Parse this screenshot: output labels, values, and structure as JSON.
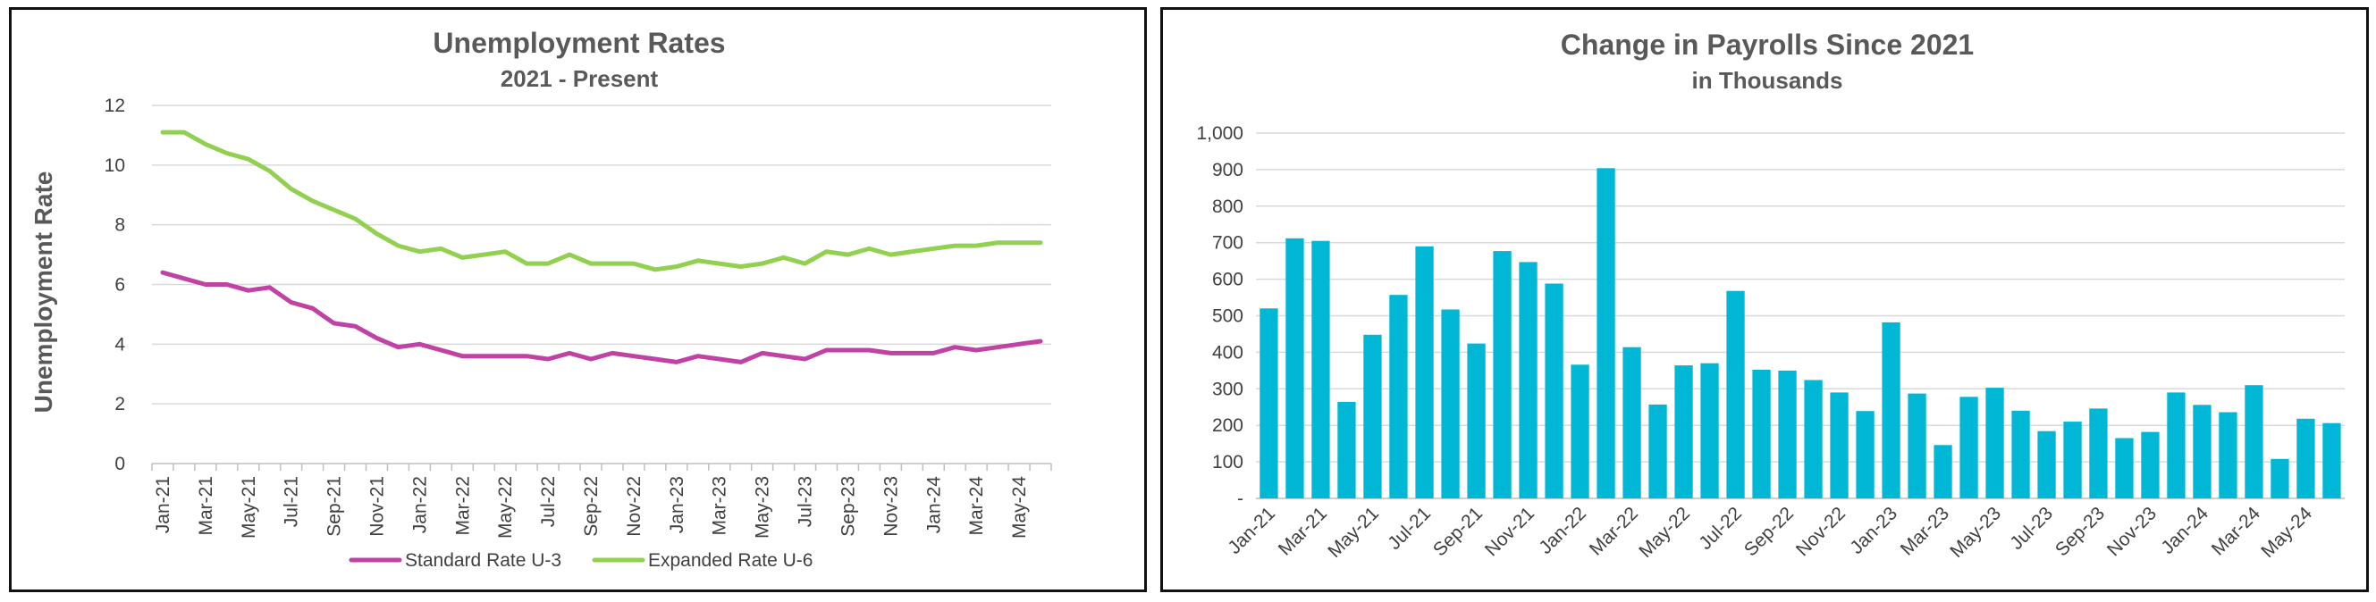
{
  "chart_data": [
    {
      "type": "line",
      "title": "Unemployment Rates",
      "subtitle": "2021 - Present",
      "xlabel": "",
      "ylabel": "Unemployment Rate",
      "ylim": [
        0,
        12
      ],
      "yticks": [
        "0",
        "2",
        "4",
        "6",
        "8",
        "10",
        "12"
      ],
      "grid": true,
      "legend": "bottom",
      "x": [
        "Jan-21",
        "Feb-21",
        "Mar-21",
        "Apr-21",
        "May-21",
        "Jun-21",
        "Jul-21",
        "Aug-21",
        "Sep-21",
        "Oct-21",
        "Nov-21",
        "Dec-21",
        "Jan-22",
        "Feb-22",
        "Mar-22",
        "Apr-22",
        "May-22",
        "Jun-22",
        "Jul-22",
        "Aug-22",
        "Sep-22",
        "Oct-22",
        "Nov-22",
        "Dec-22",
        "Jan-23",
        "Feb-23",
        "Mar-23",
        "Apr-23",
        "May-23",
        "Jun-23",
        "Jul-23",
        "Aug-23",
        "Sep-23",
        "Oct-23",
        "Nov-23",
        "Dec-23",
        "Jan-24",
        "Feb-24",
        "Mar-24",
        "Apr-24",
        "May-24",
        "Jun-24"
      ],
      "xtick_labels": [
        "Jan-21",
        "Mar-21",
        "May-21",
        "Jul-21",
        "Sep-21",
        "Nov-21",
        "Jan-22",
        "Mar-22",
        "May-22",
        "Jul-22",
        "Sep-22",
        "Nov-22",
        "Jan-23",
        "Mar-23",
        "May-23",
        "Jul-23",
        "Sep-23",
        "Nov-23",
        "Jan-24",
        "Mar-24",
        "May-24"
      ],
      "series": [
        {
          "name": "Standard Rate U-3",
          "color": "#c042a5",
          "values": [
            6.4,
            6.2,
            6.0,
            6.0,
            5.8,
            5.9,
            5.4,
            5.2,
            4.7,
            4.6,
            4.2,
            3.9,
            4.0,
            3.8,
            3.6,
            3.6,
            3.6,
            3.6,
            3.5,
            3.7,
            3.5,
            3.7,
            3.6,
            3.5,
            3.4,
            3.6,
            3.5,
            3.4,
            3.7,
            3.6,
            3.5,
            3.8,
            3.8,
            3.8,
            3.7,
            3.7,
            3.7,
            3.9,
            3.8,
            3.9,
            4.0,
            4.1
          ]
        },
        {
          "name": "Expanded Rate U-6",
          "color": "#92d050",
          "values": [
            11.1,
            11.1,
            10.7,
            10.4,
            10.2,
            9.8,
            9.2,
            8.8,
            8.5,
            8.2,
            7.7,
            7.3,
            7.1,
            7.2,
            6.9,
            7.0,
            7.1,
            6.7,
            6.7,
            7.0,
            6.7,
            6.7,
            6.7,
            6.5,
            6.6,
            6.8,
            6.7,
            6.6,
            6.7,
            6.9,
            6.7,
            7.1,
            7.0,
            7.2,
            7.0,
            7.1,
            7.2,
            7.3,
            7.3,
            7.4,
            7.4,
            7.4
          ]
        }
      ]
    },
    {
      "type": "bar",
      "title": "Change in Payrolls Since 2021",
      "subtitle": "in Thousands",
      "xlabel": "",
      "ylabel": "",
      "ylim": [
        0,
        1000
      ],
      "yticks": [
        "-",
        "100",
        "200",
        "300",
        "400",
        "500",
        "600",
        "700",
        "800",
        "900",
        "1,000"
      ],
      "grid": true,
      "color": "#00b8d6",
      "categories": [
        "Jan-21",
        "Feb-21",
        "Mar-21",
        "Apr-21",
        "May-21",
        "Jun-21",
        "Jul-21",
        "Aug-21",
        "Sep-21",
        "Oct-21",
        "Nov-21",
        "Dec-21",
        "Jan-22",
        "Feb-22",
        "Mar-22",
        "Apr-22",
        "May-22",
        "Jun-22",
        "Jul-22",
        "Aug-22",
        "Sep-22",
        "Oct-22",
        "Nov-22",
        "Dec-22",
        "Jan-23",
        "Feb-23",
        "Mar-23",
        "Apr-23",
        "May-23",
        "Jun-23",
        "Jul-23",
        "Aug-23",
        "Sep-23",
        "Oct-23",
        "Nov-23",
        "Dec-23",
        "Jan-24",
        "Feb-24",
        "Mar-24",
        "Apr-24",
        "May-24",
        "Jun-24"
      ],
      "xtick_labels": [
        "Jan-21",
        "Mar-21",
        "May-21",
        "Jul-21",
        "Sep-21",
        "Nov-21",
        "Jan-22",
        "Mar-22",
        "May-22",
        "Jul-22",
        "Sep-22",
        "Nov-22",
        "Jan-23",
        "Mar-23",
        "May-23",
        "Jul-23",
        "Sep-23",
        "Nov-23",
        "Jan-24",
        "Mar-24",
        "May-24"
      ],
      "values": [
        520,
        712,
        705,
        264,
        448,
        557,
        690,
        517,
        424,
        677,
        647,
        588,
        366,
        904,
        414,
        257,
        364,
        370,
        568,
        352,
        350,
        324,
        290,
        239,
        482,
        287,
        146,
        278,
        303,
        240,
        184,
        210,
        246,
        165,
        182,
        290,
        256,
        236,
        310,
        108,
        218,
        206
      ]
    }
  ]
}
